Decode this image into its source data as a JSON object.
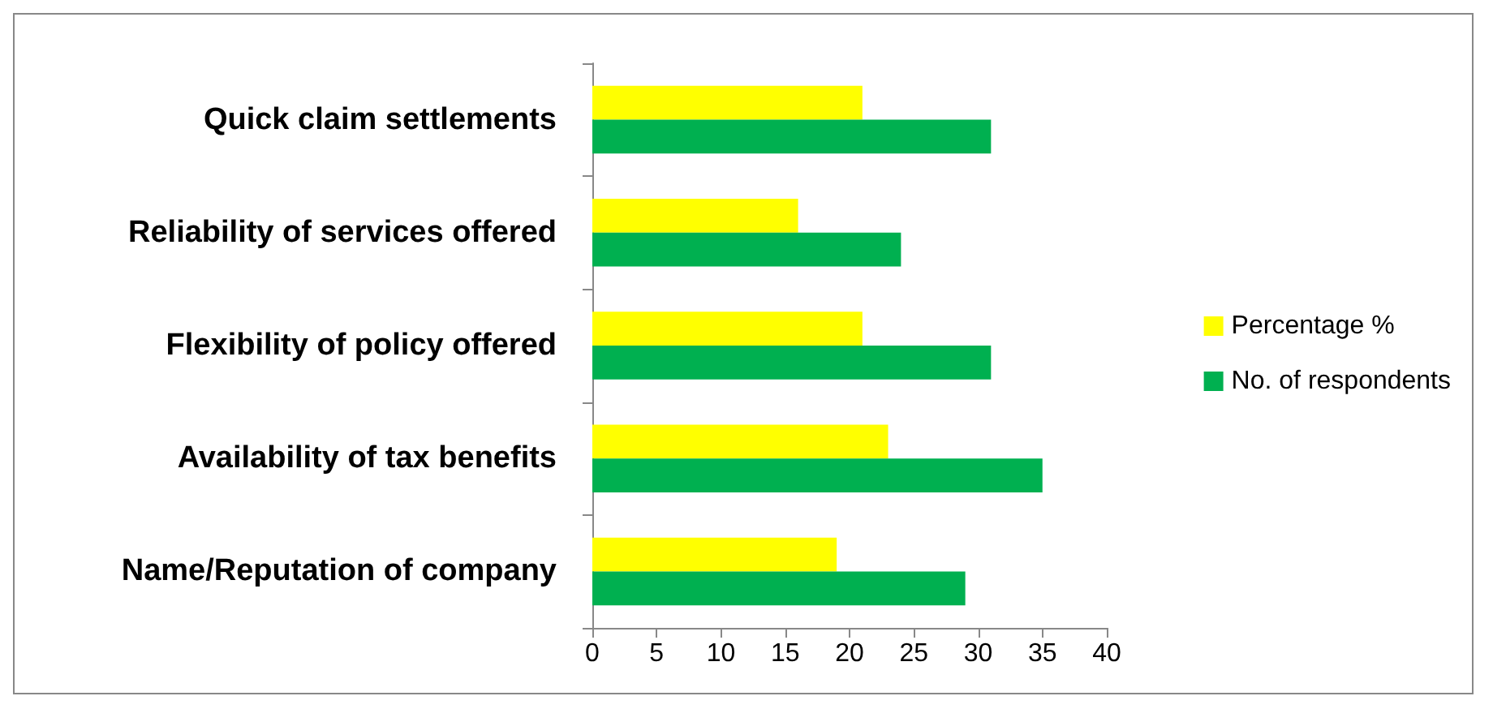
{
  "chart_data": {
    "type": "bar",
    "orientation": "horizontal",
    "categories": [
      "Quick claim settlements",
      "Reliability of services offered",
      "Flexibility of policy offered",
      "Availability of tax benefits",
      "Name/Reputation of company"
    ],
    "series": [
      {
        "name": "Percentage %",
        "color": "#ffff00",
        "values": [
          21,
          16,
          21,
          23,
          19
        ]
      },
      {
        "name": "No. of respondents",
        "color": "#00b050",
        "values": [
          31,
          24,
          31,
          35,
          29
        ]
      }
    ],
    "xlim": [
      0,
      40
    ],
    "xticks": [
      0,
      5,
      10,
      15,
      20,
      25,
      30,
      35,
      40
    ],
    "grid": false,
    "legend": "right"
  }
}
